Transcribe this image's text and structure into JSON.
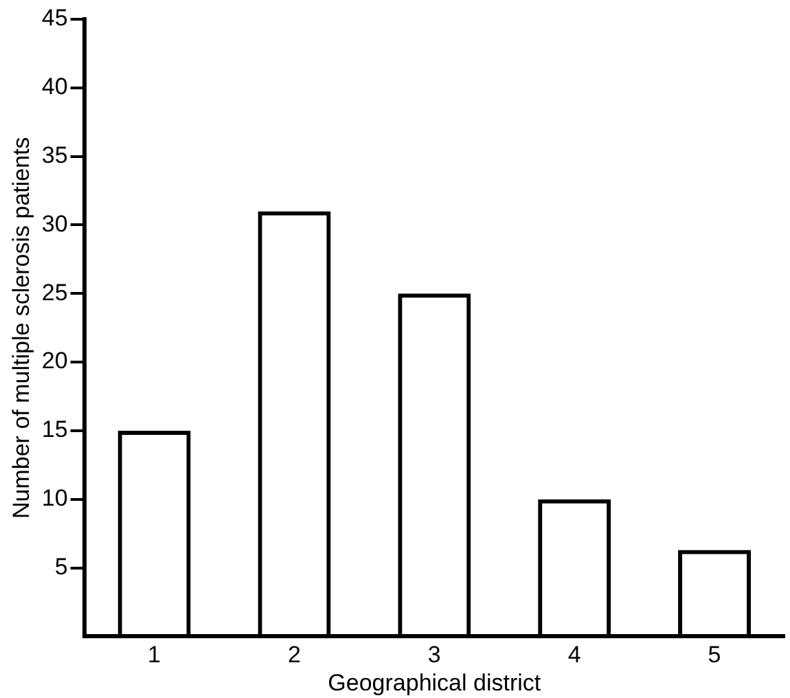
{
  "chart_data": {
    "type": "bar",
    "xlabel": "Geographical district",
    "ylabel": "Number of multiple sclerosis patients",
    "categories": [
      "1",
      "2",
      "3",
      "4",
      "5"
    ],
    "values": [
      15,
      31,
      25,
      10,
      6.3
    ],
    "color": "#000000",
    "ylim": [
      0,
      45
    ],
    "yticks": [
      5,
      10,
      15,
      20,
      25,
      30,
      35,
      40,
      45
    ],
    "grid": false,
    "legend": false
  }
}
